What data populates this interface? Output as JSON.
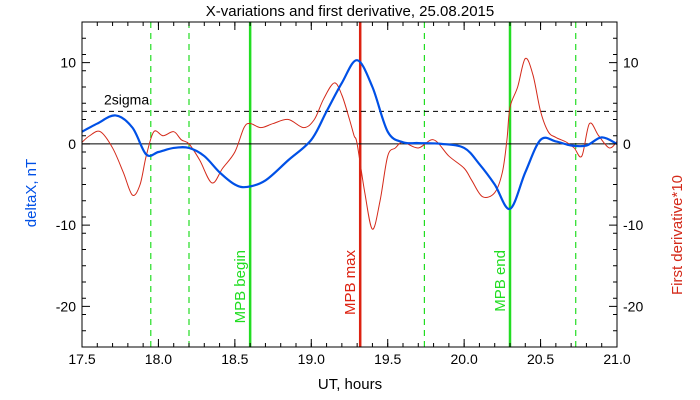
{
  "chart_data": {
    "type": "line",
    "title": "X-variations and first derivative, 25.08.2015",
    "xlabel": "UT, hours",
    "ylabel_left": "deltaX, nT",
    "ylabel_right": "First derivative*10",
    "xlim": [
      17.5,
      21.0
    ],
    "ylim": [
      -25,
      15
    ],
    "x_ticks": [
      17.5,
      18.0,
      18.5,
      19.0,
      19.5,
      20.0,
      20.5,
      21.0
    ],
    "x_tick_labels": [
      "17.5",
      "18.0",
      "18.5",
      "19.0",
      "19.5",
      "20.0",
      "20.5",
      "21.0"
    ],
    "y_ticks": [
      -20,
      -10,
      0,
      10
    ],
    "y_tick_labels": [
      "-20",
      "-10",
      "0",
      "10"
    ],
    "zero_line": 0,
    "threshold": {
      "value": 4,
      "label": "2sigma"
    },
    "series": [
      {
        "name": "deltaX, nT",
        "color": "#0050e6",
        "x": [
          17.5,
          17.6,
          17.72,
          17.83,
          17.92,
          18.0,
          18.1,
          18.2,
          18.3,
          18.4,
          18.5,
          18.58,
          18.7,
          18.85,
          19.0,
          19.1,
          19.2,
          19.3,
          19.4,
          19.5,
          19.6,
          19.7,
          19.85,
          20.0,
          20.1,
          20.2,
          20.3,
          20.4,
          20.5,
          20.6,
          20.7,
          20.8,
          20.9,
          21.0
        ],
        "y": [
          1.5,
          2.5,
          3.5,
          2.0,
          -1.3,
          -1.0,
          -0.5,
          -0.5,
          -1.5,
          -3.5,
          -5.0,
          -5.3,
          -4.5,
          -2.0,
          0.5,
          4.0,
          7.5,
          10.3,
          7.0,
          1.5,
          0.2,
          0.1,
          0.0,
          -0.5,
          -2.5,
          -5.0,
          -8.0,
          -3.5,
          0.5,
          0.3,
          -0.2,
          -0.2,
          0.8,
          0.0
        ]
      },
      {
        "name": "First derivative*10",
        "color": "#d42a1a",
        "x": [
          17.5,
          17.55,
          17.62,
          17.7,
          17.77,
          17.83,
          17.88,
          17.92,
          17.97,
          18.03,
          18.1,
          18.15,
          18.2,
          18.27,
          18.35,
          18.42,
          18.5,
          18.56,
          18.6,
          18.67,
          18.75,
          18.85,
          18.95,
          19.02,
          19.08,
          19.15,
          19.2,
          19.25,
          19.28,
          19.3,
          19.35,
          19.4,
          19.45,
          19.5,
          19.55,
          19.6,
          19.7,
          19.8,
          19.9,
          20.0,
          20.05,
          20.12,
          20.2,
          20.25,
          20.28,
          20.3,
          20.35,
          20.4,
          20.45,
          20.5,
          20.55,
          20.6,
          20.67,
          20.72,
          20.77,
          20.82,
          20.88,
          20.95,
          21.0
        ],
        "y": [
          0.2,
          1.0,
          1.5,
          -0.5,
          -3.5,
          -6.3,
          -5.0,
          -1.5,
          1.5,
          1.0,
          1.5,
          0.5,
          0.0,
          -2.0,
          -4.8,
          -3.0,
          -1.0,
          2.0,
          2.5,
          2.0,
          2.5,
          3.0,
          2.0,
          3.0,
          5.5,
          7.5,
          6.0,
          3.0,
          1.0,
          0.0,
          -6.0,
          -10.5,
          -7.0,
          -1.5,
          -0.5,
          0.2,
          -0.5,
          0.5,
          -1.5,
          -3.0,
          -4.5,
          -6.5,
          -6.0,
          -3.5,
          0.5,
          4.5,
          7.0,
          10.5,
          8.5,
          4.0,
          1.5,
          0.8,
          0.2,
          -0.5,
          -1.5,
          2.5,
          1.0,
          -0.5,
          0.3
        ]
      }
    ],
    "vlines": [
      {
        "x": 17.95,
        "color": "#22dd22",
        "style": "dashed",
        "label": ""
      },
      {
        "x": 18.2,
        "color": "#22dd22",
        "style": "dashed",
        "label": ""
      },
      {
        "x": 18.6,
        "color": "#22dd22",
        "style": "solid",
        "label": "MPB begin"
      },
      {
        "x": 19.32,
        "color": "#dd2211",
        "style": "solid",
        "label": "MPB max"
      },
      {
        "x": 19.74,
        "color": "#22dd22",
        "style": "dashed",
        "label": ""
      },
      {
        "x": 20.3,
        "color": "#22dd22",
        "style": "solid",
        "label": "MPB end"
      },
      {
        "x": 20.73,
        "color": "#22dd22",
        "style": "dashed",
        "label": ""
      }
    ]
  }
}
